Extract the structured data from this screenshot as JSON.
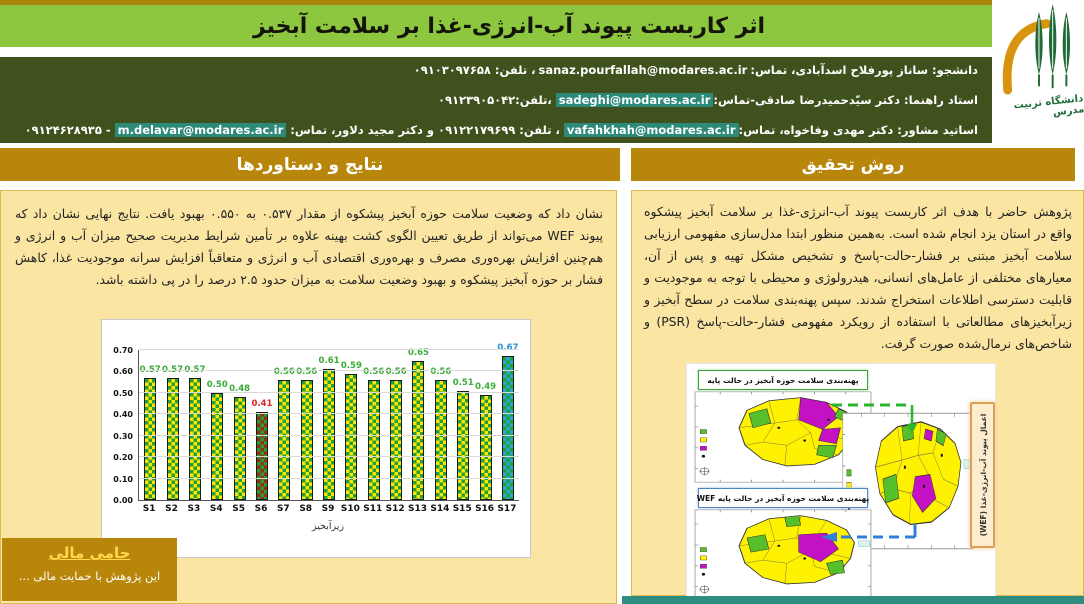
{
  "poster": {
    "title": "اثر کاربست پیوند آب-انرژی-غذا بر سلامت آبخیز",
    "university_name": "دانشگاه تربیت مدرس"
  },
  "contacts": {
    "lines": [
      {
        "segments": [
          {
            "t": "دانشجو: ساناز پورفلاح اسدآبادی، تماس:",
            "k": "text"
          },
          {
            "t": "sanaz.pourfallah@modares.ac.ir",
            "k": "email",
            "hl": false
          },
          {
            "t": "، تلفن: ۰۹۱۰۳۰۹۷۶۵۸",
            "k": "text"
          }
        ]
      },
      {
        "segments": [
          {
            "t": "استاد راهنما: دکتر سیّدحمیدرضا صادقی-تماس:",
            "k": "text"
          },
          {
            "t": "sadeghi@modares.ac.ir",
            "k": "email",
            "hl": true
          },
          {
            "t": " ،تلفن:۰۹۱۲۳۹۰۵۰۴۲",
            "k": "text"
          }
        ]
      },
      {
        "segments": [
          {
            "t": "اساتید مشاور: دکتر مهدی وفاخواه، تماس:",
            "k": "text"
          },
          {
            "t": "vafahkhah@modares.ac.ir",
            "k": "email",
            "hl": true
          },
          {
            "t": " ، تلفن: ۰۹۱۲۲۱۷۹۶۹۹ و دکتر مجید دلاور، تماس: ",
            "k": "text"
          },
          {
            "t": "m.delavar@modares.ac.ir",
            "k": "email",
            "hl": true
          },
          {
            "t": " - ۰۹۱۲۴۶۲۸۹۳۵",
            "k": "text"
          }
        ]
      }
    ]
  },
  "sections": {
    "results_title": "نتایج و دستاوردها",
    "method_title": "روش تحقیق"
  },
  "results": {
    "paragraph": "نشان داد که وضعیت سلامت حوزه آبخیز پیشکوه از مقدار ۰.۵۳۷ به ۰.۵۵۰ بهبود یافت. نتایج نهایی نشان داد که پیوند WEF می‌تواند از طریق تعیین الگوی کشت بهینه علاوه بر تأمین شرایط مدیریت صحیح میزان آب و انرژی و هم‌چنین افزایش بهره‌وری مصرف و بهره‌وری اقتصادی آب و انرژی و متعاقباً افزایش سرانه موجودیت غذا، کاهش فشار بر حوزه آبخیز پیشکوه و بهبود وضعیت سلامت به میزان حدود ۲.۵ درصد را در پی داشته باشد."
  },
  "method": {
    "paragraph": "پژوهش حاضر با هدف اثر کاربست پیوند آب-انرژی-غذا بر سلامت آبخیز پیشکوه واقع در استان یزد انجام شده است. به‌همین منظور ابتدا مدل‌سازی مفهومی ارزیابی سلامت آبخیز مبتنی بر فشار-حالت-پاسخ و تشخیص مشکل تهیه و پس از آن، معیارهای مختلفی از عامل‌های انسانی، هیدرولوژی و محیطی با توجه به موجودیت و قابلیت دسترسی اطلاعات استخراج شدند. سپس پهنه‌بندی سلامت در سطح آبخیز و زیرآبخیزهای مطالعاتی با استفاده از رویکرد مفهومی فشار-حالت-پاسخ (PSR) و شاخص‌های نرمال‌شده صورت گرفت."
  },
  "chart_data": {
    "type": "bar",
    "title": "",
    "categories": [
      "S1",
      "S2",
      "S3",
      "S4",
      "S5",
      "S6",
      "S7",
      "S8",
      "S9",
      "S10",
      "S11",
      "S12",
      "S13",
      "S14",
      "S15",
      "S16",
      "S17"
    ],
    "values": [
      0.57,
      0.57,
      0.57,
      0.5,
      0.48,
      0.41,
      0.56,
      0.56,
      0.61,
      0.59,
      0.56,
      0.56,
      0.65,
      0.56,
      0.51,
      0.49,
      0.67
    ],
    "bar_kinds": [
      "normal",
      "normal",
      "normal",
      "normal",
      "normal",
      "bad",
      "normal",
      "normal",
      "normal",
      "normal",
      "normal",
      "normal",
      "normal",
      "normal",
      "normal",
      "normal",
      "wef"
    ],
    "xlabel": "زیرآبخیز",
    "ylabel": "",
    "ylim": [
      0,
      0.7
    ],
    "yticks": [
      "0.00",
      "0.10",
      "0.20",
      "0.30",
      "0.40",
      "0.50",
      "0.60",
      "0.70"
    ],
    "grid": true,
    "legend": "none",
    "styles": {
      "normal": {
        "fill_a": "#ffe600",
        "fill_b": "#21a038",
        "label": "#3aab36"
      },
      "bad": {
        "fill_a": "#9a2c13",
        "fill_b": "#21a038",
        "label": "#e02020"
      },
      "wef": {
        "fill_a": "#29a7d8",
        "fill_b": "#21a038",
        "label": "#2491d0"
      }
    }
  },
  "funding": {
    "title": "حامی مالی",
    "text": "این پژوهش با حمایت مالی ..."
  },
  "maps": {
    "base_map_title": "پهنه‌بندی سلامت حوزه آبخیز در حالت پایه",
    "wef_map_title": "پهنه‌بندی سلامت حوزه آبخیز در حالت پایه WEF",
    "side_label": "اعمال پیوند آب-انرژی-غذا (WEF)",
    "region_colors": {
      "yellow": "#fff200",
      "green": "#56c02b",
      "purple": "#c411c4"
    },
    "arrow_colors": {
      "base_to_wef": "#2ab52a",
      "wef_to_result": "#2f7fd6"
    }
  },
  "colors": {
    "banner_green": "#8dc63f",
    "contact_band": "#3f511d",
    "header_gold": "#b8860b",
    "panel_yellow": "#fbe5a2",
    "email_highlight": "#2d8a78",
    "bottom_teal": "#2f8c80"
  }
}
